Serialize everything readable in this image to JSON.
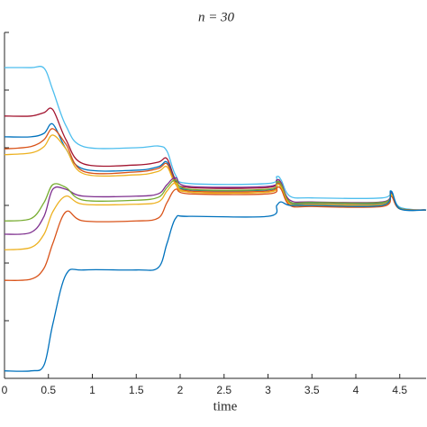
{
  "chart_data": {
    "type": "line",
    "title": "n = 30",
    "x_label": "time",
    "x": [
      0,
      0.3,
      0.45,
      0.55,
      0.7,
      0.9,
      1.5,
      1.75,
      1.85,
      1.95,
      2.1,
      3.0,
      3.1,
      3.15,
      3.25,
      3.5,
      4.3,
      4.4,
      4.5,
      4.8
    ],
    "xlim": [
      0,
      4.8
    ],
    "xticks": [
      0,
      0.5,
      1,
      1.5,
      2,
      2.5,
      3,
      3.5,
      4,
      4.5
    ],
    "ylim": [
      0,
      6
    ],
    "yticks": [
      0,
      1,
      2,
      3,
      4,
      5,
      6
    ],
    "series": [
      {
        "color": "#4dbeee",
        "values": [
          5.39,
          5.39,
          5.38,
          5.0,
          4.38,
          4.02,
          4.0,
          4.03,
          3.94,
          3.52,
          3.38,
          3.38,
          3.5,
          3.44,
          3.16,
          3.13,
          3.13,
          3.25,
          2.97,
          2.92
        ]
      },
      {
        "color": "#a2142f",
        "values": [
          4.55,
          4.55,
          4.61,
          4.66,
          4.14,
          3.72,
          3.7,
          3.75,
          3.81,
          3.44,
          3.31,
          3.31,
          3.44,
          3.39,
          3.06,
          3.05,
          3.05,
          3.22,
          2.95,
          2.92
        ]
      },
      {
        "color": "#0072bd",
        "values": [
          4.19,
          4.19,
          4.25,
          4.41,
          3.98,
          3.63,
          3.61,
          3.67,
          3.75,
          3.41,
          3.27,
          3.27,
          3.39,
          3.34,
          3.05,
          3.03,
          3.03,
          3.2,
          2.95,
          2.92
        ]
      },
      {
        "color": "#d95319",
        "values": [
          3.98,
          4.02,
          4.14,
          4.33,
          4.06,
          3.59,
          3.58,
          3.64,
          3.72,
          3.39,
          3.25,
          3.25,
          3.38,
          3.33,
          3.03,
          3.02,
          3.02,
          3.19,
          2.94,
          2.92
        ]
      },
      {
        "color": "#edb120",
        "values": [
          3.88,
          3.91,
          4.02,
          4.22,
          3.98,
          3.55,
          3.53,
          3.59,
          3.67,
          3.36,
          3.23,
          3.23,
          3.36,
          3.31,
          3.02,
          3.0,
          3.0,
          3.17,
          2.94,
          2.92
        ]
      },
      {
        "color": "#7e2f8e",
        "values": [
          2.5,
          2.53,
          2.81,
          3.28,
          3.28,
          3.16,
          3.16,
          3.2,
          3.36,
          3.48,
          3.33,
          3.33,
          3.44,
          3.39,
          3.09,
          3.06,
          3.06,
          3.22,
          2.95,
          2.92
        ]
      },
      {
        "color": "#77ac30",
        "values": [
          2.73,
          2.77,
          3.05,
          3.36,
          3.31,
          3.09,
          3.09,
          3.14,
          3.31,
          3.44,
          3.28,
          3.28,
          3.41,
          3.36,
          3.06,
          3.05,
          3.05,
          3.2,
          2.95,
          2.92
        ]
      },
      {
        "color": "#edb120",
        "values": [
          2.23,
          2.27,
          2.5,
          2.89,
          3.16,
          3.02,
          3.02,
          3.06,
          3.25,
          3.39,
          3.23,
          3.23,
          3.36,
          3.31,
          3.03,
          3.02,
          3.02,
          3.19,
          2.94,
          2.92
        ]
      },
      {
        "color": "#d95319",
        "values": [
          1.7,
          1.72,
          1.91,
          2.34,
          2.89,
          2.73,
          2.73,
          2.78,
          3.05,
          3.28,
          3.2,
          3.2,
          3.31,
          3.28,
          3.0,
          2.98,
          2.98,
          3.16,
          2.94,
          2.92
        ]
      },
      {
        "color": "#0072bd",
        "values": [
          0.13,
          0.13,
          0.23,
          0.94,
          1.8,
          1.88,
          1.88,
          1.92,
          2.34,
          2.78,
          2.81,
          2.81,
          3.0,
          3.06,
          3.0,
          3.0,
          3.0,
          3.25,
          2.94,
          2.92
        ]
      }
    ]
  }
}
